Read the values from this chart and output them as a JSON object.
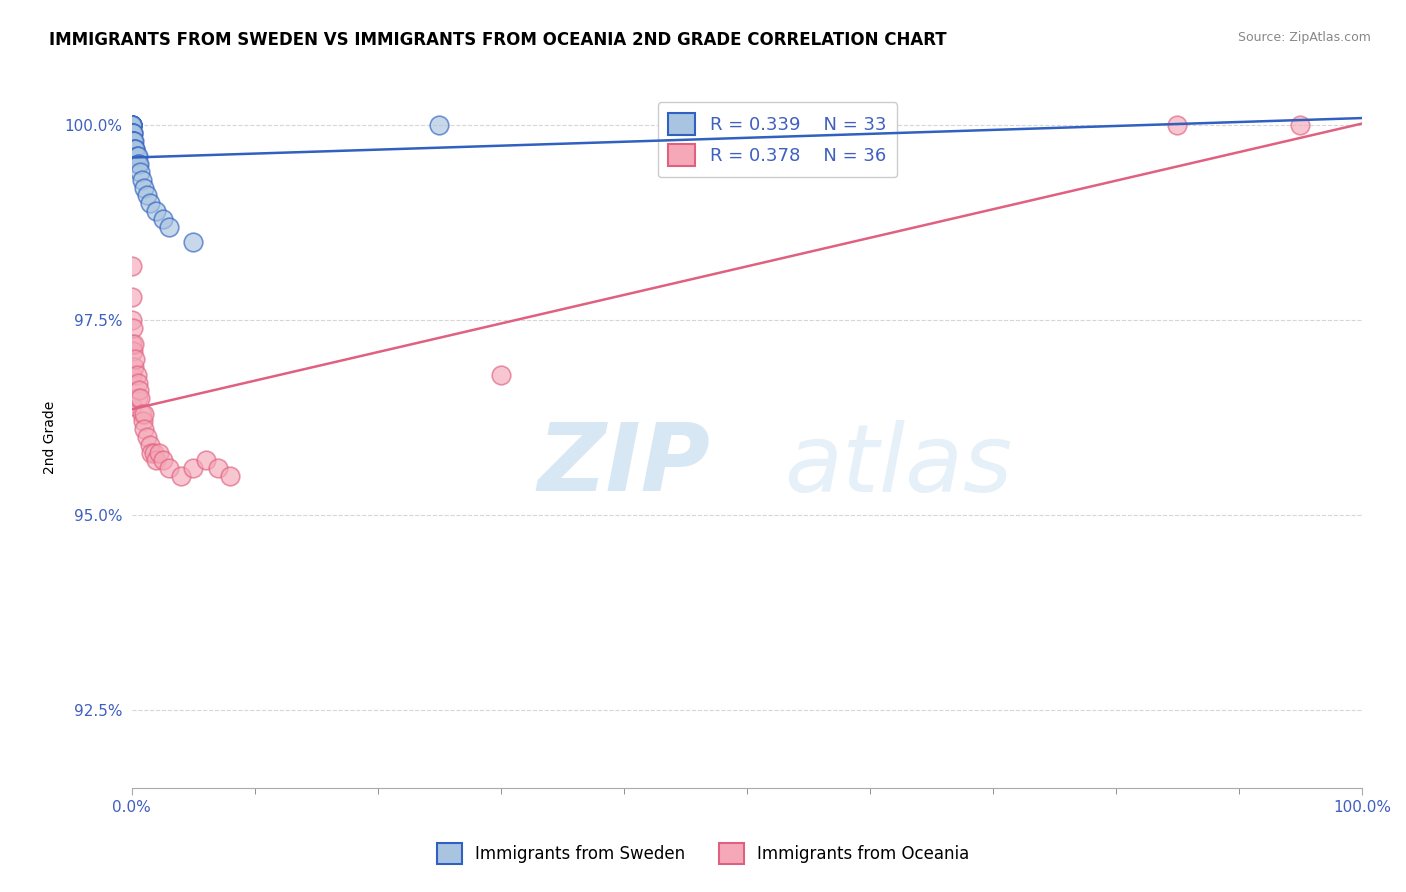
{
  "title": "IMMIGRANTS FROM SWEDEN VS IMMIGRANTS FROM OCEANIA 2ND GRADE CORRELATION CHART",
  "source": "Source: ZipAtlas.com",
  "ylabel": "2nd Grade",
  "xmin": 0.0,
  "xmax": 1.0,
  "ymin": 0.915,
  "ymax": 1.005,
  "yticks": [
    0.925,
    0.95,
    0.975,
    1.0
  ],
  "ytick_labels": [
    "92.5%",
    "95.0%",
    "97.5%",
    "100.0%"
  ],
  "xtick_labels": [
    "0.0%",
    "100.0%"
  ],
  "legend_r1": "R = 0.339",
  "legend_n1": "N = 33",
  "legend_r2": "R = 0.378",
  "legend_n2": "N = 36",
  "color_sweden": "#a8c4e0",
  "color_oceania": "#f4a8b8",
  "color_line_sweden": "#3060c0",
  "color_line_oceania": "#e06080",
  "color_tick": "#4060c0",
  "watermark_zip": "ZIP",
  "watermark_atlas": "atlas",
  "sweden_x": [
    0.0,
    0.0,
    0.0,
    0.0,
    0.0,
    0.0,
    0.0,
    0.0,
    0.0,
    0.001,
    0.001,
    0.001,
    0.001,
    0.001,
    0.002,
    0.002,
    0.003,
    0.003,
    0.004,
    0.005,
    0.005,
    0.006,
    0.007,
    0.008,
    0.01,
    0.012,
    0.015,
    0.02,
    0.025,
    0.03,
    0.05,
    0.25,
    0.6
  ],
  "sweden_y": [
    1.0,
    1.0,
    1.0,
    1.0,
    1.0,
    1.0,
    0.999,
    0.999,
    0.999,
    0.999,
    0.999,
    0.998,
    0.998,
    0.998,
    0.998,
    0.997,
    0.997,
    0.997,
    0.996,
    0.996,
    0.995,
    0.995,
    0.994,
    0.993,
    0.992,
    0.991,
    0.99,
    0.989,
    0.988,
    0.987,
    0.985,
    1.0,
    1.0
  ],
  "oceania_x": [
    0.0,
    0.0,
    0.0,
    0.0,
    0.0,
    0.0,
    0.001,
    0.001,
    0.002,
    0.002,
    0.003,
    0.004,
    0.005,
    0.005,
    0.006,
    0.007,
    0.008,
    0.009,
    0.01,
    0.01,
    0.012,
    0.015,
    0.016,
    0.018,
    0.02,
    0.022,
    0.025,
    0.03,
    0.04,
    0.05,
    0.06,
    0.07,
    0.08,
    0.3,
    0.85,
    0.95
  ],
  "oceania_y": [
    0.982,
    0.978,
    0.975,
    0.972,
    0.968,
    0.964,
    0.974,
    0.971,
    0.972,
    0.969,
    0.97,
    0.968,
    0.967,
    0.965,
    0.966,
    0.965,
    0.963,
    0.962,
    0.963,
    0.961,
    0.96,
    0.959,
    0.958,
    0.958,
    0.957,
    0.958,
    0.957,
    0.956,
    0.955,
    0.956,
    0.957,
    0.956,
    0.955,
    0.968,
    1.0,
    1.0
  ]
}
